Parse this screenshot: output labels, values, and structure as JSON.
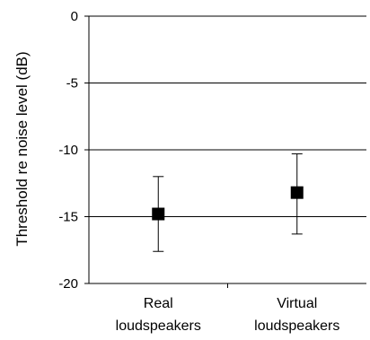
{
  "chart_data": {
    "type": "scatter",
    "title": "",
    "xlabel": "",
    "ylabel": "Threshold re noise level (dB)",
    "ylim": [
      -20,
      0
    ],
    "yticks": [
      0,
      -5,
      -10,
      -15,
      -20
    ],
    "grid": true,
    "categories": [
      {
        "line1": "Real",
        "line2": "loudspeakers"
      },
      {
        "line1": "Virtual",
        "line2": "loudspeakers"
      }
    ],
    "series": [
      {
        "marker": "square",
        "values": [
          -14.8,
          -13.2
        ],
        "error_low": [
          -17.6,
          -16.3
        ],
        "error_high": [
          -12.0,
          -10.3
        ]
      }
    ]
  }
}
